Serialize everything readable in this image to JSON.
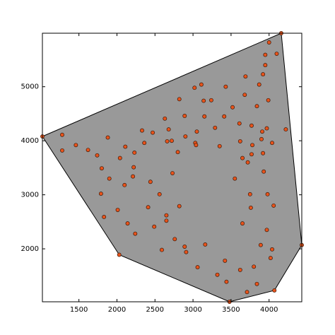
{
  "chart_data": {
    "type": "scatter",
    "xlim": [
      1020,
      4430
    ],
    "ylim": [
      1020,
      5990
    ],
    "xticks": [
      1500,
      2000,
      2500,
      3000,
      3500,
      4000
    ],
    "yticks": [
      2000,
      3000,
      4000,
      5000
    ],
    "color": "#e8531b",
    "edgecolor": "#3a1a0a",
    "hull": {
      "color": "#999999",
      "edgecolor": "#000000",
      "x": [
        1020,
        2030,
        3480,
        4070,
        4430,
        4160
      ],
      "y": [
        4080,
        1890,
        1020,
        1230,
        2070,
        5990
      ]
    },
    "x": [
      1020,
      2030,
      3480,
      4070,
      4430,
      4160,
      1280,
      1280,
      1460,
      1620,
      1740,
      1800,
      1880,
      1790,
      1900,
      1830,
      2010,
      2040,
      2110,
      2100,
      2140,
      2220,
      2210,
      2230,
      2240,
      2330,
      2360,
      2410,
      2440,
      2470,
      2490,
      2560,
      2590,
      2630,
      2650,
      2650,
      2660,
      2680,
      2730,
      2720,
      2800,
      2760,
      2820,
      2820,
      2890,
      2890,
      2900,
      2910,
      3020,
      3050,
      3030,
      3040,
      3110,
      3150,
      3160,
      3140,
      3060,
      3240,
      3290,
      3350,
      3320,
      3420,
      3430,
      3410,
      3440,
      3520,
      3550,
      3610,
      3620,
      3620,
      3650,
      3680,
      3690,
      3650,
      3710,
      3720,
      3750,
      3760,
      3770,
      3780,
      3770,
      3800,
      3840,
      3840,
      3870,
      3900,
      3890,
      3920,
      3920,
      3910,
      3950,
      3950,
      3930,
      3970,
      3970,
      3980,
      3990,
      4000,
      4020,
      4040,
      4040,
      4060,
      4100,
      4220
    ],
    "y": [
      4080,
      1890,
      1020,
      1230,
      2070,
      5990,
      4110,
      3820,
      3920,
      3830,
      3730,
      3490,
      4060,
      3020,
      3300,
      2590,
      2720,
      3680,
      3890,
      3180,
      2470,
      3510,
      3340,
      3780,
      2280,
      4190,
      3960,
      2770,
      3240,
      4150,
      2410,
      3010,
      1980,
      4410,
      2620,
      2520,
      3990,
      4210,
      3400,
      4000,
      3790,
      2180,
      2790,
      4770,
      4460,
      2040,
      4080,
      1940,
      4980,
      4170,
      3960,
      3920,
      5040,
      4450,
      2080,
      4740,
      1660,
      4750,
      4240,
      3900,
      1520,
      1780,
      5000,
      4450,
      1390,
      4620,
      3300,
      4320,
      1610,
      3990,
      3680,
      4850,
      5190,
      2470,
      1200,
      3600,
      3010,
      2760,
      3750,
      3920,
      4280,
      1670,
      1350,
      4640,
      5040,
      4030,
      2070,
      5230,
      3770,
      4170,
      5400,
      5590,
      3430,
      4230,
      2350,
      3010,
      4750,
      5820,
      1830,
      3960,
      1990,
      2800,
      5610,
      4210
    ]
  }
}
